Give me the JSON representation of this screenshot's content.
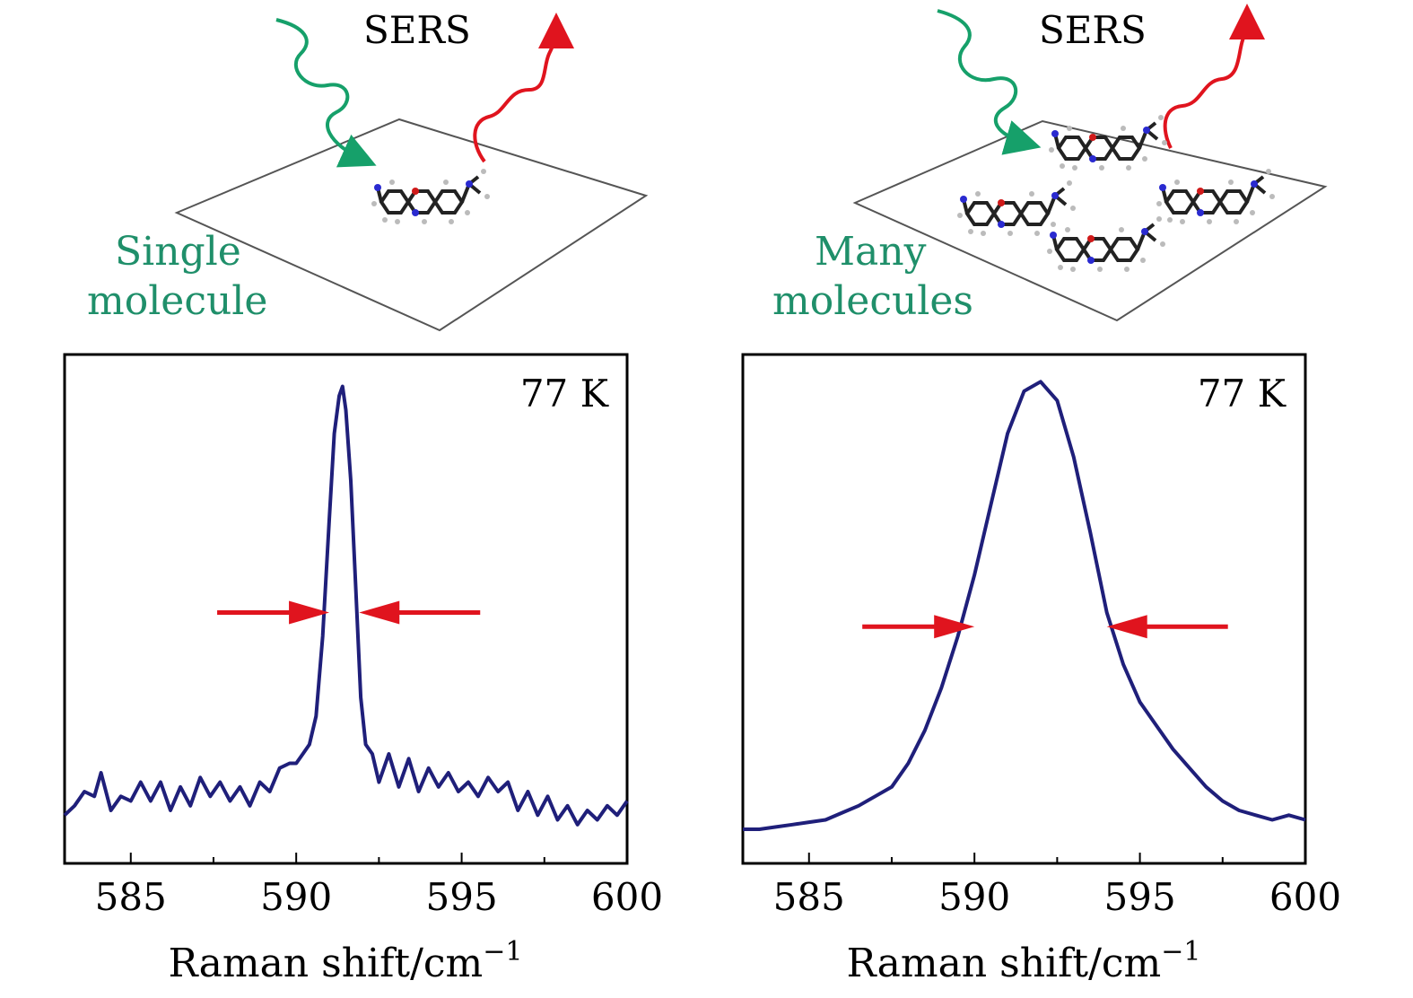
{
  "colors": {
    "curve": "#1f1f7a",
    "arrow": "#e0141e",
    "incident_wave": "#16a06a",
    "scattered_wave": "#e0141e",
    "label_green": "#1f8f6a",
    "frame": "#000000",
    "substrate": "#555555"
  },
  "icons": {
    "incident": "wavy-arrow-icon",
    "scattered": "wavy-arrow-icon",
    "molecule": "molecule-icon"
  },
  "panels": [
    {
      "sers_label": "SERS",
      "label": [
        "Single",
        "molecule"
      ],
      "molecule_count": 1
    },
    {
      "sers_label": "SERS",
      "label": [
        "Many",
        "molecules"
      ],
      "molecule_count": 4
    }
  ],
  "chart_data": [
    {
      "type": "line",
      "title": "",
      "annotation": "77 K",
      "xlabel": "Raman shift/cm",
      "xlabel_sup": "−1",
      "ylabel": "",
      "xlim": [
        583,
        600
      ],
      "ylim": [
        0,
        1
      ],
      "xticks": [
        "585",
        "590",
        "595",
        "600"
      ],
      "grid": false,
      "fwhm": {
        "left": 591.0,
        "right": 591.9,
        "y": 0.5
      },
      "series": [
        {
          "x": [
            583.0,
            583.3,
            583.6,
            583.9,
            584.1,
            584.4,
            584.7,
            585.0,
            585.3,
            585.6,
            585.9,
            586.2,
            586.5,
            586.8,
            587.1,
            587.4,
            587.7,
            588.0,
            588.3,
            588.6,
            588.9,
            589.2,
            589.5,
            589.8,
            590.0,
            590.2,
            590.4,
            590.6,
            590.8,
            591.0,
            591.15,
            591.3,
            591.4,
            591.5,
            591.65,
            591.8,
            591.95,
            592.1,
            592.3,
            592.5,
            592.8,
            593.1,
            593.4,
            593.7,
            594.0,
            594.3,
            594.6,
            594.9,
            595.2,
            595.5,
            595.8,
            596.1,
            596.4,
            596.7,
            597.0,
            597.3,
            597.6,
            597.9,
            598.2,
            598.5,
            598.8,
            599.1,
            599.4,
            599.7,
            600.0
          ],
          "y": [
            0.07,
            0.09,
            0.12,
            0.11,
            0.16,
            0.08,
            0.11,
            0.1,
            0.14,
            0.1,
            0.14,
            0.08,
            0.13,
            0.09,
            0.15,
            0.11,
            0.14,
            0.1,
            0.13,
            0.09,
            0.14,
            0.12,
            0.17,
            0.18,
            0.18,
            0.2,
            0.22,
            0.28,
            0.45,
            0.7,
            0.88,
            0.96,
            0.98,
            0.93,
            0.78,
            0.55,
            0.32,
            0.22,
            0.2,
            0.14,
            0.2,
            0.13,
            0.19,
            0.12,
            0.17,
            0.13,
            0.16,
            0.12,
            0.14,
            0.11,
            0.15,
            0.12,
            0.14,
            0.08,
            0.12,
            0.07,
            0.11,
            0.06,
            0.09,
            0.05,
            0.08,
            0.06,
            0.09,
            0.07,
            0.1
          ]
        }
      ]
    },
    {
      "type": "line",
      "title": "",
      "annotation": "77 K",
      "xlabel": "Raman shift/cm",
      "xlabel_sup": "−1",
      "ylabel": "",
      "xlim": [
        583,
        600
      ],
      "ylim": [
        0,
        1
      ],
      "xticks": [
        "585",
        "590",
        "595",
        "600"
      ],
      "grid": false,
      "fwhm": {
        "left": 590.0,
        "right": 594.0,
        "y": 0.47
      },
      "series": [
        {
          "x": [
            583.0,
            583.5,
            584.0,
            584.5,
            585.0,
            585.5,
            586.0,
            586.5,
            587.0,
            587.5,
            588.0,
            588.5,
            589.0,
            589.5,
            590.0,
            590.5,
            591.0,
            591.5,
            592.0,
            592.5,
            593.0,
            593.5,
            594.0,
            594.5,
            595.0,
            595.5,
            596.0,
            596.5,
            597.0,
            597.5,
            598.0,
            598.5,
            599.0,
            599.5,
            600.0
          ],
          "y": [
            0.04,
            0.04,
            0.045,
            0.05,
            0.055,
            0.06,
            0.075,
            0.09,
            0.11,
            0.13,
            0.18,
            0.25,
            0.34,
            0.45,
            0.58,
            0.73,
            0.88,
            0.97,
            0.99,
            0.95,
            0.83,
            0.67,
            0.5,
            0.39,
            0.31,
            0.26,
            0.21,
            0.17,
            0.13,
            0.1,
            0.08,
            0.07,
            0.06,
            0.07,
            0.06
          ]
        }
      ]
    }
  ]
}
